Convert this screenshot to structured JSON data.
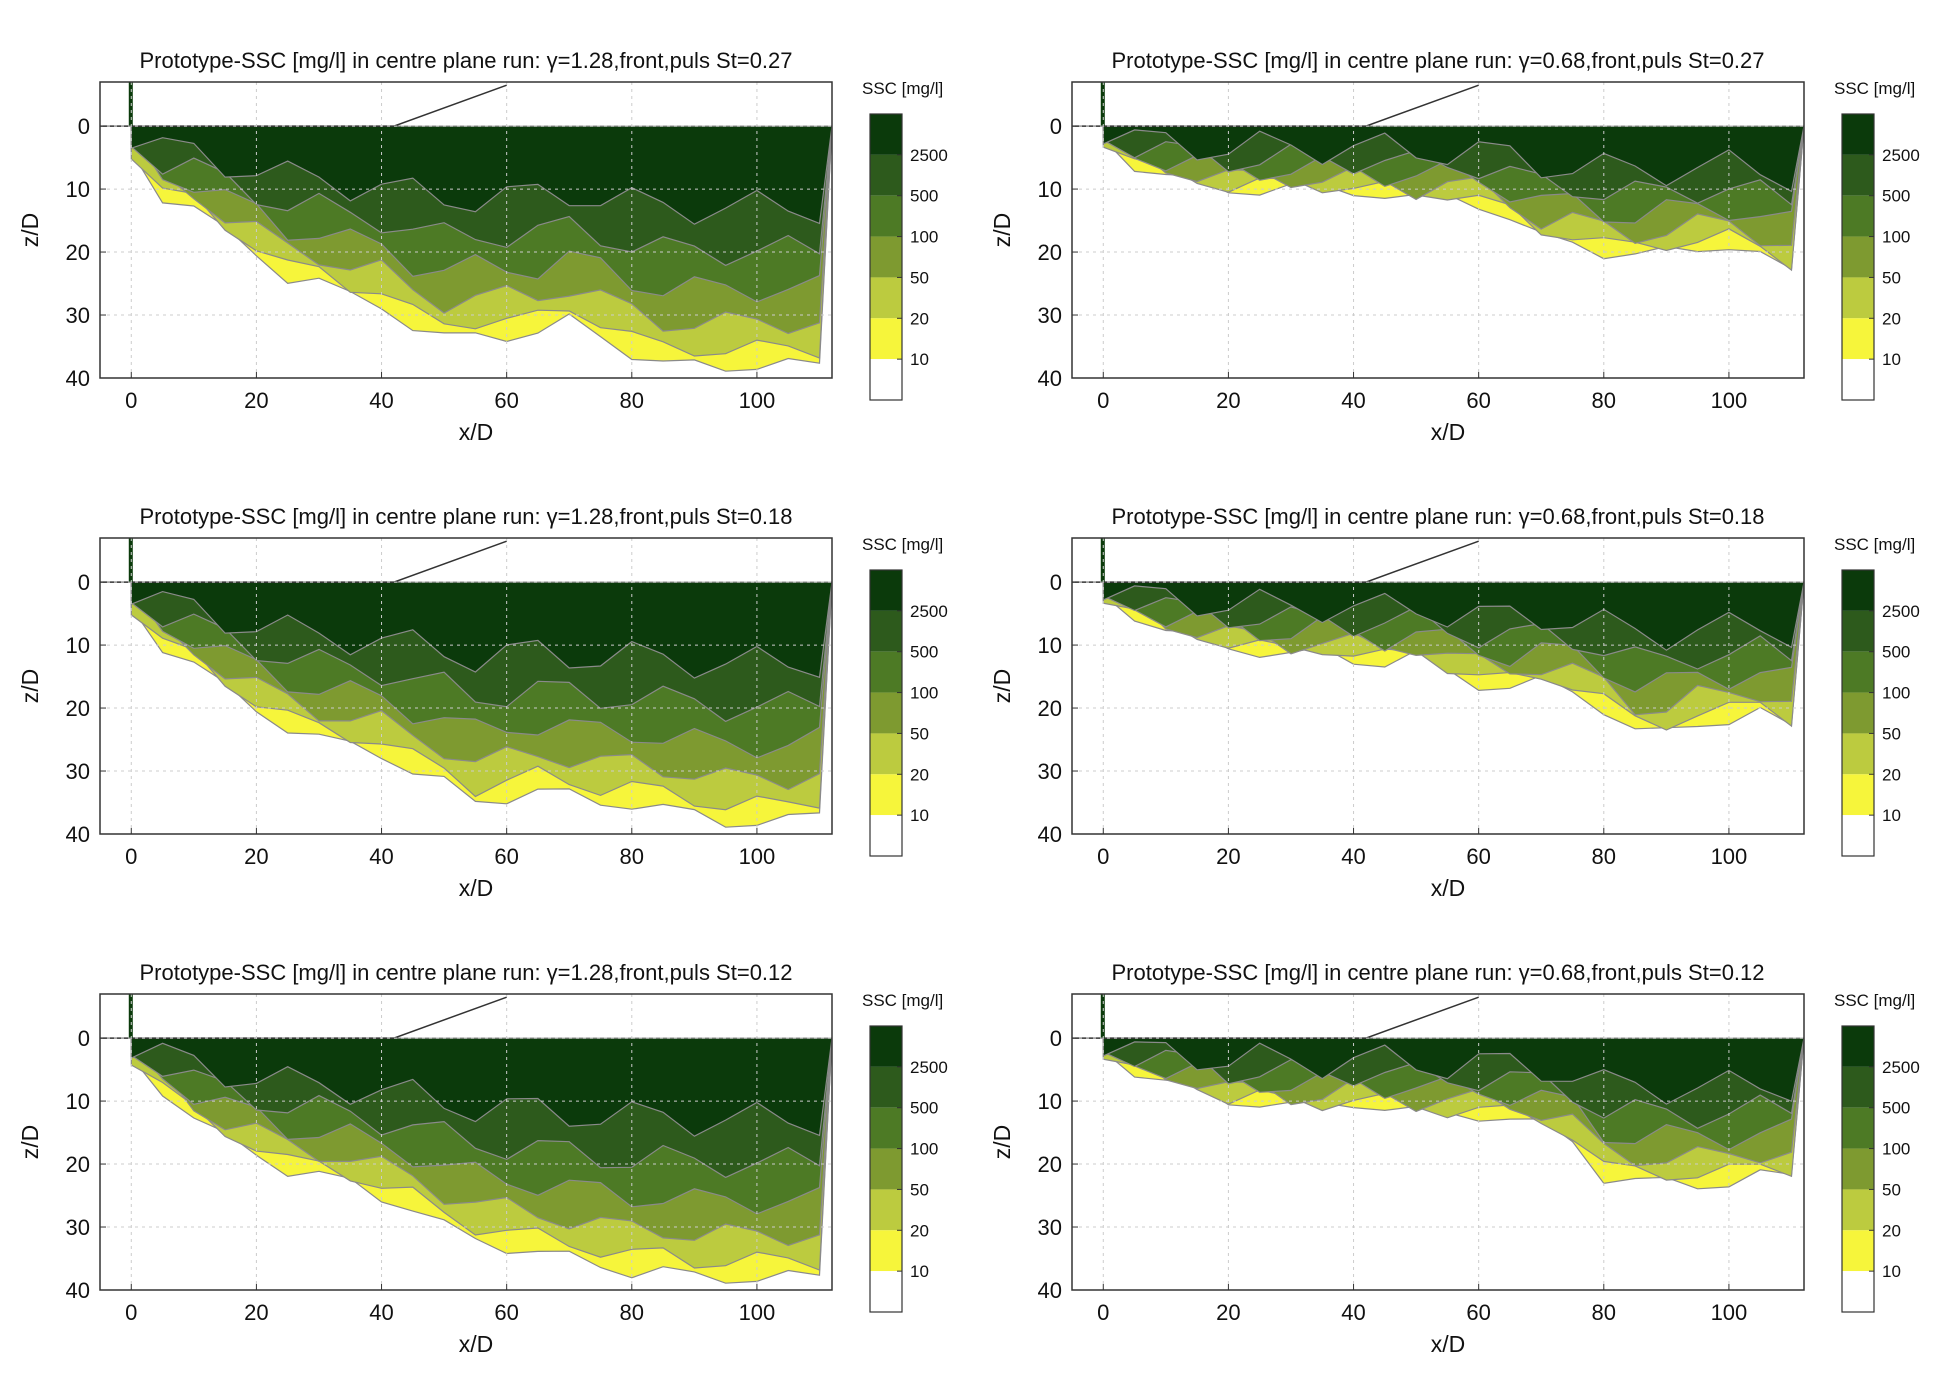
{
  "chart_data": [
    {
      "type": "heatmap",
      "title": "Prototype-SSC [mg/l] in centre plane run: γ=1.28,front,puls St=0.27",
      "xlabel": "x/D",
      "ylabel": "z/D",
      "xlim": [
        -5,
        112
      ],
      "ylim": [
        40,
        -7
      ],
      "xticks": [
        "0",
        "20",
        "40",
        "60",
        "80",
        "100"
      ],
      "yticks": [
        "0",
        "10",
        "20",
        "30",
        "40"
      ],
      "colorbar": {
        "title": "SSC [mg/l]",
        "levels": [
          "2500",
          "500",
          "100",
          "50",
          "20",
          "10"
        ]
      },
      "grid": true,
      "plume_depth_profile": {
        "x": [
          0,
          5,
          10,
          15,
          20,
          25,
          30,
          35,
          40,
          45,
          50,
          55,
          60,
          65,
          70,
          75,
          80,
          85,
          90,
          95,
          100,
          105,
          110
        ],
        "depth": [
          4,
          11,
          13,
          17,
          20,
          24,
          25,
          27,
          28,
          32,
          34,
          33,
          33,
          33,
          31,
          33,
          36,
          38,
          38,
          38,
          38,
          38,
          38
        ]
      }
    },
    {
      "type": "heatmap",
      "title": "Prototype-SSC [mg/l] in centre plane run: γ=0.68,front,puls St=0.27",
      "xlabel": "x/D",
      "ylabel": "z/D",
      "xlim": [
        -5,
        112
      ],
      "ylim": [
        40,
        -7
      ],
      "xticks": [
        "0",
        "20",
        "40",
        "60",
        "80",
        "100"
      ],
      "yticks": [
        "0",
        "10",
        "20",
        "30",
        "40"
      ],
      "colorbar": {
        "title": "SSC [mg/l]",
        "levels": [
          "2500",
          "500",
          "100",
          "50",
          "20",
          "10"
        ]
      },
      "grid": true,
      "plume_depth_profile": {
        "x": [
          0,
          5,
          10,
          15,
          20,
          25,
          30,
          35,
          40,
          45,
          50,
          55,
          60,
          65,
          70,
          75,
          80,
          85,
          90,
          95,
          100,
          105,
          110
        ],
        "depth": [
          2,
          6,
          8,
          9,
          10,
          10,
          10,
          10,
          10,
          11,
          12,
          11,
          12,
          15,
          18,
          18,
          20,
          21,
          20,
          19,
          19,
          21,
          23
        ]
      }
    },
    {
      "type": "heatmap",
      "title": "Prototype-SSC [mg/l] in centre plane run: γ=1.28,front,puls St=0.18",
      "xlabel": "x/D",
      "ylabel": "z/D",
      "xlim": [
        -5,
        112
      ],
      "ylim": [
        40,
        -7
      ],
      "xticks": [
        "0",
        "20",
        "40",
        "60",
        "80",
        "100"
      ],
      "yticks": [
        "0",
        "10",
        "20",
        "30",
        "40"
      ],
      "colorbar": {
        "title": "SSC [mg/l]",
        "levels": [
          "2500",
          "500",
          "100",
          "50",
          "20",
          "10"
        ]
      },
      "grid": true,
      "plume_depth_profile": {
        "x": [
          0,
          5,
          10,
          15,
          20,
          25,
          30,
          35,
          40,
          45,
          50,
          55,
          60,
          65,
          70,
          75,
          80,
          85,
          90,
          95,
          100,
          105,
          110
        ],
        "depth": [
          4,
          10,
          13,
          17,
          20,
          23,
          25,
          26,
          27,
          30,
          32,
          35,
          34,
          33,
          34,
          35,
          35,
          36,
          37,
          38,
          38,
          38,
          37
        ]
      }
    },
    {
      "type": "heatmap",
      "title": "Prototype-SSC [mg/l] in centre plane run: γ=0.68,front,puls St=0.18",
      "xlabel": "x/D",
      "ylabel": "z/D",
      "xlim": [
        -5,
        112
      ],
      "ylim": [
        40,
        -7
      ],
      "xticks": [
        "0",
        "20",
        "40",
        "60",
        "80",
        "100"
      ],
      "yticks": [
        "0",
        "10",
        "20",
        "30",
        "40"
      ],
      "colorbar": {
        "title": "SSC [mg/l]",
        "levels": [
          "2500",
          "500",
          "100",
          "50",
          "20",
          "10"
        ]
      },
      "grid": true,
      "plume_depth_profile": {
        "x": [
          0,
          5,
          10,
          15,
          20,
          25,
          30,
          35,
          40,
          45,
          50,
          55,
          60,
          65,
          70,
          75,
          80,
          85,
          90,
          95,
          100,
          105,
          110
        ],
        "depth": [
          2,
          5,
          8,
          9,
          10,
          11,
          12,
          11,
          12,
          13,
          12,
          14,
          16,
          17,
          16,
          17,
          20,
          24,
          24,
          22,
          22,
          21,
          23
        ]
      }
    },
    {
      "type": "heatmap",
      "title": "Prototype-SSC [mg/l] in centre plane run: γ=1.28,front,puls St=0.12",
      "xlabel": "x/D",
      "ylabel": "z/D",
      "xlim": [
        -5,
        112
      ],
      "ylim": [
        40,
        -7
      ],
      "xticks": [
        "0",
        "20",
        "40",
        "60",
        "80",
        "100"
      ],
      "yticks": [
        "0",
        "10",
        "20",
        "30",
        "40"
      ],
      "colorbar": {
        "title": "SSC [mg/l]",
        "levels": [
          "2500",
          "500",
          "100",
          "50",
          "20",
          "10"
        ]
      },
      "grid": true,
      "plume_depth_profile": {
        "x": [
          0,
          5,
          10,
          15,
          20,
          25,
          30,
          35,
          40,
          45,
          50,
          55,
          60,
          65,
          70,
          75,
          80,
          85,
          90,
          95,
          100,
          105,
          110
        ],
        "depth": [
          3,
          8,
          13,
          16,
          18,
          21,
          22,
          23,
          25,
          27,
          30,
          32,
          33,
          34,
          35,
          36,
          37,
          37,
          38,
          38,
          38,
          38,
          38
        ]
      }
    },
    {
      "type": "heatmap",
      "title": "Prototype-SSC [mg/l] in centre plane run: γ=0.68,front,puls St=0.12",
      "xlabel": "x/D",
      "ylabel": "z/D",
      "xlim": [
        -5,
        112
      ],
      "ylim": [
        40,
        -7
      ],
      "xticks": [
        "0",
        "20",
        "40",
        "60",
        "80",
        "100"
      ],
      "yticks": [
        "0",
        "10",
        "20",
        "30",
        "40"
      ],
      "colorbar": {
        "title": "SSC [mg/l]",
        "levels": [
          "2500",
          "500",
          "100",
          "50",
          "20",
          "10"
        ]
      },
      "grid": true,
      "plume_depth_profile": {
        "x": [
          0,
          5,
          10,
          15,
          20,
          25,
          30,
          35,
          40,
          45,
          50,
          55,
          60,
          65,
          70,
          75,
          80,
          85,
          90,
          95,
          100,
          105,
          110
        ],
        "depth": [
          2,
          5,
          7,
          8,
          10,
          10,
          11,
          11,
          10,
          11,
          12,
          12,
          12,
          13,
          14,
          16,
          22,
          23,
          23,
          23,
          23,
          22,
          22
        ]
      }
    }
  ],
  "palette": {
    "c2500": "#0b3a0b",
    "c500": "#2d5a1c",
    "c100": "#4d7a25",
    "c50": "#7e9a30",
    "c20": "#bccb3f",
    "c10": "#f6f53b",
    "c0": "#ffffff",
    "contour": "#8a8a8a",
    "grid": "#cccccc"
  }
}
